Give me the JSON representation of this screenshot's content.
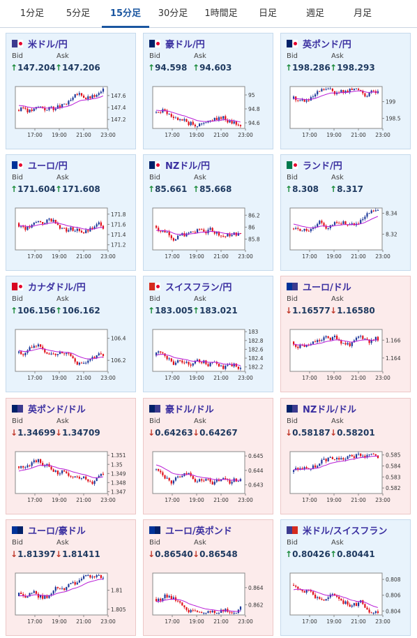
{
  "tabs": [
    {
      "label": "1分足",
      "active": false
    },
    {
      "label": "5分足",
      "active": false
    },
    {
      "label": "15分足",
      "active": true
    },
    {
      "label": "30分足",
      "active": false
    },
    {
      "label": "1時間足",
      "active": false
    },
    {
      "label": "日足",
      "active": false
    },
    {
      "label": "週足",
      "active": false
    },
    {
      "label": "月足",
      "active": false
    }
  ],
  "labels": {
    "bid": "Bid",
    "ask": "Ask"
  },
  "time_ticks": [
    "17:00",
    "19:00",
    "21:00",
    "23:00"
  ],
  "colors": {
    "candle_up": "#1f3a9a",
    "candle_down": "#e0101a",
    "ma_line": "#b81bd6",
    "up_arrow": "#1a8a3a",
    "down_arrow": "#c0392b"
  },
  "pairs": [
    {
      "name": "米ドル/円",
      "flag": "us-jp",
      "dir": "up",
      "bid": "147.204",
      "ask": "147.206",
      "yticks": [
        "147.6",
        "147.4",
        "147.2"
      ],
      "ylim": [
        147.05,
        147.75
      ]
    },
    {
      "name": "豪ドル/円",
      "flag": "au-jp",
      "dir": "up",
      "bid": "94.598",
      "ask": "94.603",
      "yticks": [
        "95",
        "94.8",
        "94.6"
      ],
      "ylim": [
        94.52,
        95.12
      ]
    },
    {
      "name": "英ポンド/円",
      "flag": "gb-jp",
      "dir": "up",
      "bid": "198.286",
      "ask": "198.293",
      "yticks": [
        "199",
        "198.5"
      ],
      "ylim": [
        198.2,
        199.45
      ]
    },
    {
      "name": "ユーロ/円",
      "flag": "eu-jp",
      "dir": "up",
      "bid": "171.604",
      "ask": "171.608",
      "yticks": [
        "171.8",
        "171.6",
        "171.4",
        "171.2"
      ],
      "ylim": [
        171.1,
        171.92
      ]
    },
    {
      "name": "NZドル/円",
      "flag": "nz-jp",
      "dir": "up",
      "bid": "85.661",
      "ask": "85.668",
      "yticks": [
        "86.2",
        "86",
        "85.8"
      ],
      "ylim": [
        85.62,
        86.32
      ]
    },
    {
      "name": "ランド/円",
      "flag": "za-jp",
      "dir": "up",
      "bid": "8.308",
      "ask": "8.317",
      "yticks": [
        "8.34",
        "8.32"
      ],
      "ylim": [
        8.305,
        8.345
      ]
    },
    {
      "name": "カナダドル/円",
      "flag": "ca-jp",
      "dir": "up",
      "bid": "106.156",
      "ask": "106.162",
      "yticks": [
        "106.4",
        "106.2"
      ],
      "ylim": [
        106.1,
        106.48
      ]
    },
    {
      "name": "スイスフラン/円",
      "flag": "ch-jp",
      "dir": "up",
      "bid": "183.005",
      "ask": "183.021",
      "yticks": [
        "183",
        "182.8",
        "182.6",
        "182.4",
        "182.2"
      ],
      "ylim": [
        182.1,
        183.05
      ]
    },
    {
      "name": "ユーロ/ドル",
      "flag": "eu-us",
      "dir": "down",
      "bid": "1.16577",
      "ask": "1.16580",
      "yticks": [
        "1.166",
        "1.164"
      ],
      "ylim": [
        1.1625,
        1.1672
      ]
    },
    {
      "name": "英ポンド/ドル",
      "flag": "gb-us",
      "dir": "down",
      "bid": "1.34699",
      "ask": "1.34709",
      "yticks": [
        "1.351",
        "1.35",
        "1.349",
        "1.348",
        "1.347"
      ],
      "ylim": [
        1.3468,
        1.3514
      ]
    },
    {
      "name": "豪ドル/ドル",
      "flag": "au-us",
      "dir": "down",
      "bid": "0.64263",
      "ask": "0.64267",
      "yticks": [
        "0.645",
        "0.644",
        "0.643"
      ],
      "ylim": [
        0.6424,
        0.6453
      ]
    },
    {
      "name": "NZドル/ドル",
      "flag": "nz-us",
      "dir": "down",
      "bid": "0.58187",
      "ask": "0.58201",
      "yticks": [
        "0.585",
        "0.584",
        "0.583",
        "0.582"
      ],
      "ylim": [
        0.5815,
        0.5853
      ]
    },
    {
      "name": "ユーロ/豪ドル",
      "flag": "eu-au",
      "dir": "down",
      "bid": "1.81397",
      "ask": "1.81411",
      "yticks": [
        "1.81",
        "1.805"
      ],
      "ylim": [
        1.8035,
        1.8145
      ]
    },
    {
      "name": "ユーロ/英ポンド",
      "flag": "eu-gb",
      "dir": "down",
      "bid": "0.86540",
      "ask": "0.86548",
      "yticks": [
        "0.864",
        "0.862"
      ],
      "ylim": [
        0.8608,
        0.8657
      ]
    },
    {
      "name": "米ドル/スイスフラン",
      "flag": "us-ch",
      "dir": "up",
      "bid": "0.80426",
      "ask": "0.80441",
      "yticks": [
        "0.808",
        "0.806",
        "0.804"
      ],
      "ylim": [
        0.8035,
        0.8088
      ]
    }
  ]
}
